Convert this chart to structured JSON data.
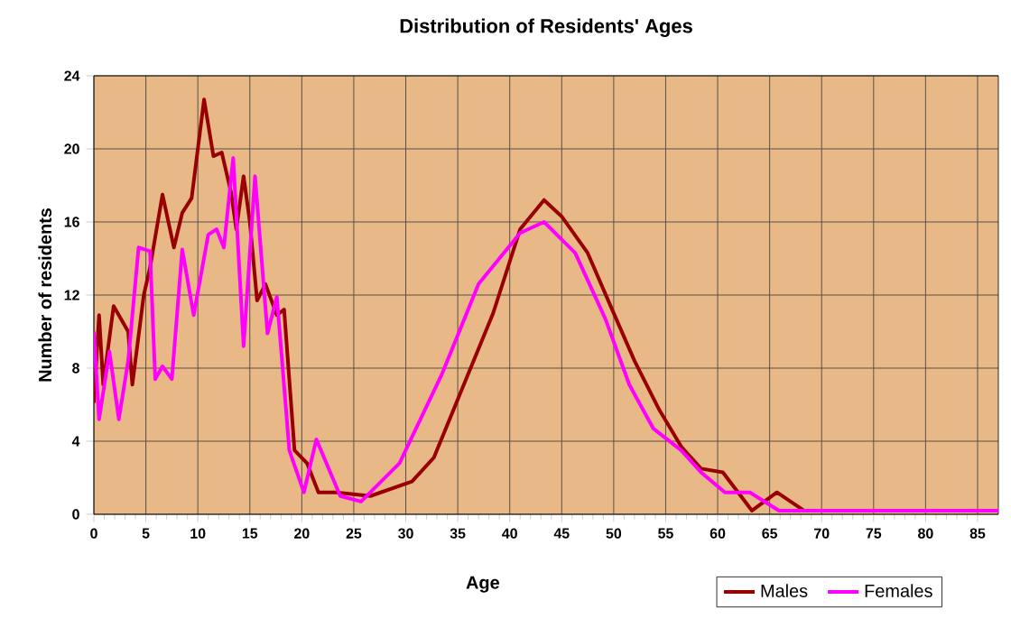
{
  "chart_data": {
    "type": "line",
    "title": "Distribution of Residents' Ages",
    "xlabel": "Age",
    "ylabel": "Number of residents",
    "xlim": [
      0,
      87
    ],
    "ylim": [
      0,
      24
    ],
    "xticks": [
      0,
      5,
      10,
      15,
      20,
      25,
      30,
      35,
      40,
      45,
      50,
      55,
      60,
      65,
      70,
      75,
      80,
      85
    ],
    "yticks": [
      0,
      4,
      8,
      12,
      16,
      20,
      24
    ],
    "grid": true,
    "legend": "bottom right",
    "marker": "none",
    "line_style": "solid",
    "series": [
      {
        "name": "Males",
        "color": "#990000",
        "x": [
          0,
          0.5,
          0.9,
          1.9,
          3.3,
          3.7,
          4.8,
          5.4,
          6.6,
          7.7,
          8.5,
          9.4,
          10.6,
          11.5,
          12.3,
          13.2,
          13.7,
          14.4,
          15,
          15.7,
          16.5,
          17.6,
          18.3,
          19.3,
          20.5,
          21.6,
          23.3,
          26.6,
          30.6,
          32.7,
          35.3,
          38.4,
          41,
          43.3,
          45,
          47.5,
          49.7,
          52,
          54.4,
          56.5,
          58.4,
          60.5,
          63.3,
          65.7,
          68.3,
          87
        ],
        "values": [
          6.1,
          10.9,
          7.1,
          11.4,
          10,
          7.1,
          12,
          13.5,
          17.5,
          14.6,
          16.5,
          17.3,
          22.7,
          19.6,
          19.8,
          17.6,
          15.6,
          18.5,
          16,
          11.7,
          12.6,
          10.9,
          11.2,
          3.5,
          2.8,
          1.2,
          1.2,
          1.0,
          1.8,
          3.1,
          6.7,
          11,
          15.6,
          17.2,
          16.3,
          14.3,
          11.4,
          8.4,
          5.7,
          3.7,
          2.5,
          2.3,
          0.2,
          1.2,
          0.2,
          0.2
        ]
      },
      {
        "name": "Females",
        "color": "#ff00ff",
        "x": [
          0,
          0.5,
          1.5,
          2.4,
          3.3,
          4.3,
          5.4,
          5.9,
          6.6,
          7.5,
          8.5,
          9.6,
          11,
          11.8,
          12.5,
          13.4,
          14.4,
          15.5,
          16.7,
          17.6,
          18.8,
          20.2,
          21.4,
          23.7,
          25.7,
          29.4,
          33.5,
          37,
          41,
          43.3,
          46.3,
          49.2,
          51.5,
          53.8,
          56.5,
          58.4,
          60.7,
          63.1,
          65.9,
          87
        ],
        "values": [
          10,
          5.2,
          8.9,
          5.2,
          8.4,
          14.6,
          14.4,
          7.4,
          8.1,
          7.4,
          14.5,
          10.9,
          15.3,
          15.6,
          14.6,
          19.5,
          9.2,
          18.5,
          9.9,
          11.9,
          3.5,
          1.2,
          4.1,
          1,
          0.7,
          2.8,
          7.7,
          12.6,
          15.4,
          16,
          14.3,
          10.7,
          7.1,
          4.7,
          3.5,
          2.3,
          1.2,
          1.2,
          0.2,
          0.2
        ]
      }
    ]
  }
}
